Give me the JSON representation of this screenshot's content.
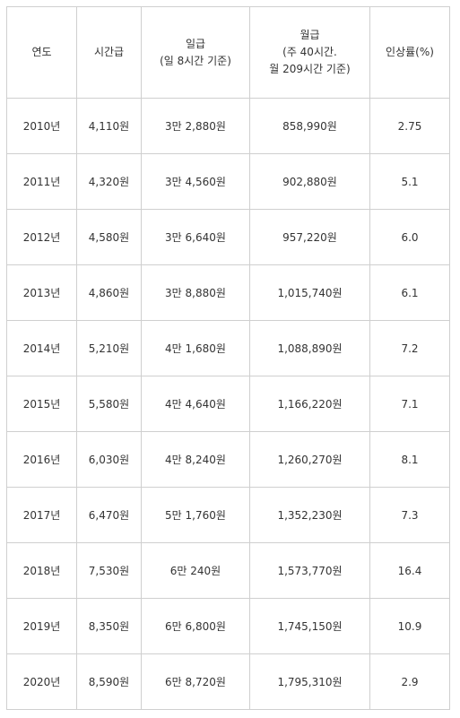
{
  "table": {
    "headers": [
      {
        "lines": [
          "연도"
        ]
      },
      {
        "lines": [
          "시간급"
        ]
      },
      {
        "lines": [
          "일급",
          "(일 8시간 기준)"
        ]
      },
      {
        "lines": [
          "월급",
          "(주 40시간.",
          "월 209시간 기준)"
        ]
      },
      {
        "lines": [
          "인상률(%)"
        ]
      }
    ],
    "rows": [
      {
        "year": "2010년",
        "hourly": "4,110원",
        "daily": "3만 2,880원",
        "monthly": "858,990원",
        "rate": "2.75"
      },
      {
        "year": "2011년",
        "hourly": "4,320원",
        "daily": "3만 4,560원",
        "monthly": "902,880원",
        "rate": "5.1"
      },
      {
        "year": "2012년",
        "hourly": "4,580원",
        "daily": "3만 6,640원",
        "monthly": "957,220원",
        "rate": "6.0"
      },
      {
        "year": "2013년",
        "hourly": "4,860원",
        "daily": "3만 8,880원",
        "monthly": "1,015,740원",
        "rate": "6.1"
      },
      {
        "year": "2014년",
        "hourly": "5,210원",
        "daily": "4만 1,680원",
        "monthly": "1,088,890원",
        "rate": "7.2"
      },
      {
        "year": "2015년",
        "hourly": "5,580원",
        "daily": "4만 4,640원",
        "monthly": "1,166,220원",
        "rate": "7.1"
      },
      {
        "year": "2016년",
        "hourly": "6,030원",
        "daily": "4만 8,240원",
        "monthly": "1,260,270원",
        "rate": "8.1"
      },
      {
        "year": "2017년",
        "hourly": "6,470원",
        "daily": "5만 1,760원",
        "monthly": "1,352,230원",
        "rate": "7.3"
      },
      {
        "year": "2018년",
        "hourly": "7,530원",
        "daily": "6만 240원",
        "monthly": "1,573,770원",
        "rate": "16.4"
      },
      {
        "year": "2019년",
        "hourly": "8,350원",
        "daily": "6만 6,800원",
        "monthly": "1,745,150원",
        "rate": "10.9"
      },
      {
        "year": "2020년",
        "hourly": "8,590원",
        "daily": "6만 8,720원",
        "monthly": "1,795,310원",
        "rate": "2.9"
      }
    ]
  }
}
